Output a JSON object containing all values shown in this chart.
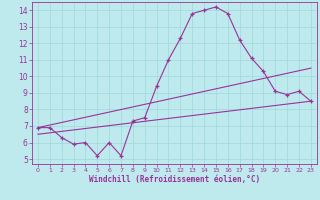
{
  "xlabel": "Windchill (Refroidissement éolien,°C)",
  "xlim": [
    -0.5,
    23.5
  ],
  "ylim": [
    4.7,
    14.5
  ],
  "yticks": [
    5,
    6,
    7,
    8,
    9,
    10,
    11,
    12,
    13,
    14
  ],
  "xticks": [
    0,
    1,
    2,
    3,
    4,
    5,
    6,
    7,
    8,
    9,
    10,
    11,
    12,
    13,
    14,
    15,
    16,
    17,
    18,
    19,
    20,
    21,
    22,
    23
  ],
  "bg_color": "#beeaed",
  "grid_color": "#9ed8dc",
  "line_color": "#993399",
  "curve1_x": [
    0,
    1,
    2,
    3,
    4,
    5,
    6,
    7,
    8,
    9,
    10,
    11,
    12,
    13,
    14,
    15,
    16,
    17,
    18,
    19,
    20,
    21,
    22,
    23
  ],
  "curve1_y": [
    6.9,
    6.9,
    6.3,
    5.9,
    6.0,
    5.2,
    6.0,
    5.2,
    7.3,
    7.5,
    9.4,
    11.0,
    12.3,
    13.8,
    14.0,
    14.2,
    13.8,
    12.2,
    11.1,
    10.3,
    9.1,
    8.9,
    9.1,
    8.5
  ],
  "line1_x": [
    0,
    23
  ],
  "line1_y": [
    6.9,
    10.5
  ],
  "line2_x": [
    0,
    23
  ],
  "line2_y": [
    6.5,
    8.5
  ]
}
